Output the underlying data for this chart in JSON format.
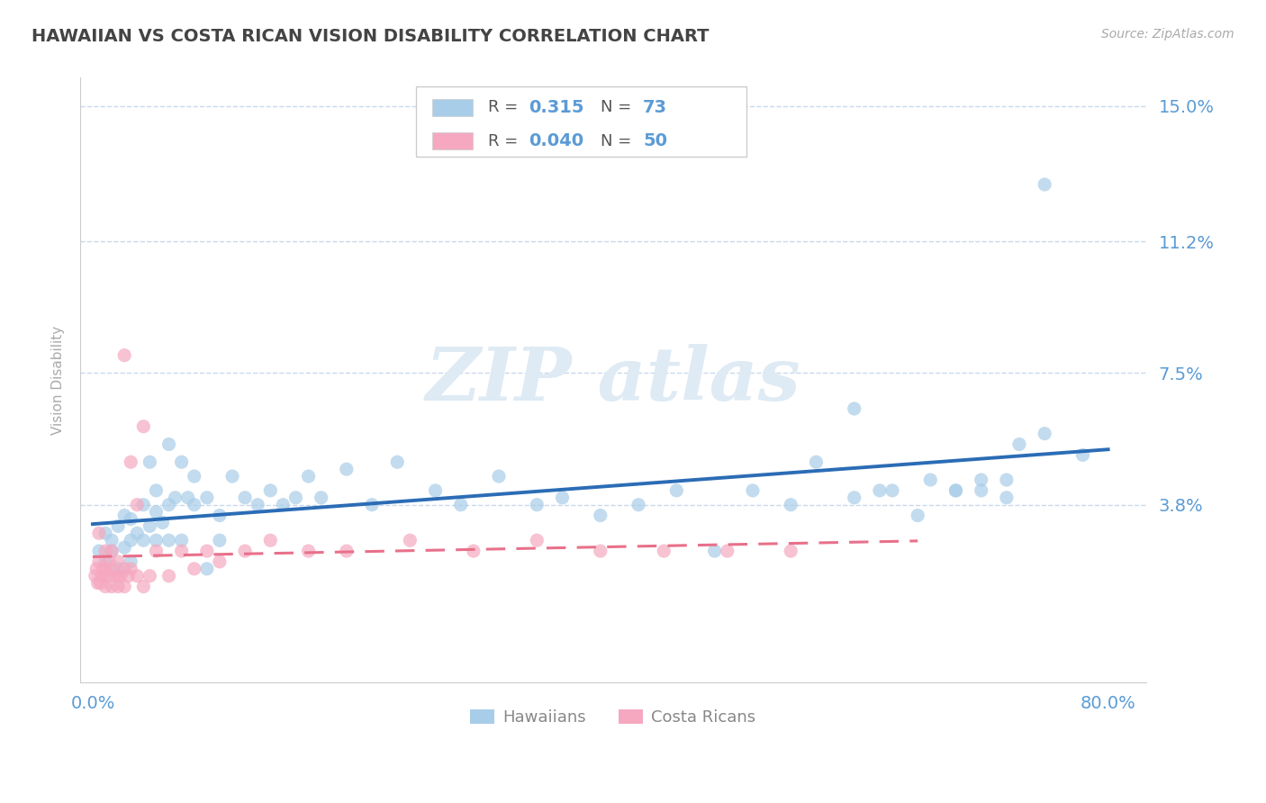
{
  "title": "HAWAIIAN VS COSTA RICAN VISION DISABILITY CORRELATION CHART",
  "source": "Source: ZipAtlas.com",
  "ylabel": "Vision Disability",
  "xlim": [
    -0.01,
    0.83
  ],
  "ylim": [
    -0.012,
    0.158
  ],
  "yticks": [
    0.038,
    0.075,
    0.112,
    0.15
  ],
  "ytick_labels": [
    "3.8%",
    "7.5%",
    "11.2%",
    "15.0%"
  ],
  "xticks": [
    0.0,
    0.8
  ],
  "xtick_labels": [
    "0.0%",
    "80.0%"
  ],
  "hawaiian_R": 0.315,
  "hawaiian_N": 73,
  "costa_rican_R": 0.04,
  "costa_rican_N": 50,
  "hawaiian_color": "#a8cde8",
  "costa_rican_color": "#f5a8c0",
  "trend_hawaiian_color": "#2b6cb5",
  "trend_costa_rican_color": "#e8708a",
  "background_color": "#ffffff",
  "grid_color": "#c8d8ea",
  "title_color": "#444444",
  "axis_label_color": "#5b9bd5",
  "legend_box_color": "#5b9bd5",
  "hawaiian_x": [
    0.005,
    0.01,
    0.01,
    0.015,
    0.015,
    0.02,
    0.02,
    0.025,
    0.025,
    0.03,
    0.03,
    0.03,
    0.035,
    0.04,
    0.04,
    0.045,
    0.045,
    0.05,
    0.05,
    0.05,
    0.055,
    0.06,
    0.06,
    0.06,
    0.065,
    0.07,
    0.07,
    0.075,
    0.08,
    0.08,
    0.09,
    0.09,
    0.1,
    0.1,
    0.11,
    0.12,
    0.13,
    0.14,
    0.15,
    0.16,
    0.17,
    0.18,
    0.2,
    0.22,
    0.24,
    0.27,
    0.29,
    0.32,
    0.35,
    0.37,
    0.4,
    0.43,
    0.46,
    0.49,
    0.52,
    0.55,
    0.57,
    0.6,
    0.62,
    0.65,
    0.68,
    0.7,
    0.72,
    0.75,
    0.6,
    0.63,
    0.66,
    0.68,
    0.7,
    0.72,
    0.73,
    0.75,
    0.78
  ],
  "hawaiian_y": [
    0.025,
    0.022,
    0.03,
    0.025,
    0.028,
    0.02,
    0.032,
    0.026,
    0.035,
    0.022,
    0.028,
    0.034,
    0.03,
    0.038,
    0.028,
    0.032,
    0.05,
    0.028,
    0.036,
    0.042,
    0.033,
    0.055,
    0.038,
    0.028,
    0.04,
    0.05,
    0.028,
    0.04,
    0.038,
    0.046,
    0.04,
    0.02,
    0.035,
    0.028,
    0.046,
    0.04,
    0.038,
    0.042,
    0.038,
    0.04,
    0.046,
    0.04,
    0.048,
    0.038,
    0.05,
    0.042,
    0.038,
    0.046,
    0.038,
    0.04,
    0.035,
    0.038,
    0.042,
    0.025,
    0.042,
    0.038,
    0.05,
    0.065,
    0.042,
    0.035,
    0.042,
    0.045,
    0.04,
    0.128,
    0.04,
    0.042,
    0.045,
    0.042,
    0.042,
    0.045,
    0.055,
    0.058,
    0.052
  ],
  "costa_rican_x": [
    0.002,
    0.003,
    0.004,
    0.005,
    0.005,
    0.006,
    0.007,
    0.008,
    0.009,
    0.01,
    0.01,
    0.01,
    0.012,
    0.013,
    0.015,
    0.015,
    0.015,
    0.018,
    0.02,
    0.02,
    0.02,
    0.022,
    0.025,
    0.025,
    0.025,
    0.028,
    0.03,
    0.03,
    0.035,
    0.035,
    0.04,
    0.04,
    0.045,
    0.05,
    0.06,
    0.07,
    0.08,
    0.09,
    0.1,
    0.12,
    0.14,
    0.17,
    0.2,
    0.25,
    0.3,
    0.35,
    0.4,
    0.45,
    0.5,
    0.55
  ],
  "costa_rican_y": [
    0.018,
    0.02,
    0.016,
    0.022,
    0.03,
    0.016,
    0.018,
    0.02,
    0.018,
    0.015,
    0.02,
    0.025,
    0.018,
    0.022,
    0.015,
    0.02,
    0.025,
    0.018,
    0.015,
    0.018,
    0.022,
    0.018,
    0.015,
    0.02,
    0.08,
    0.018,
    0.02,
    0.05,
    0.018,
    0.038,
    0.015,
    0.06,
    0.018,
    0.025,
    0.018,
    0.025,
    0.02,
    0.025,
    0.022,
    0.025,
    0.028,
    0.025,
    0.025,
    0.028,
    0.025,
    0.028,
    0.025,
    0.025,
    0.025,
    0.025
  ],
  "legend_hawaiians": "Hawaiians",
  "legend_costa_ricans": "Costa Ricans"
}
